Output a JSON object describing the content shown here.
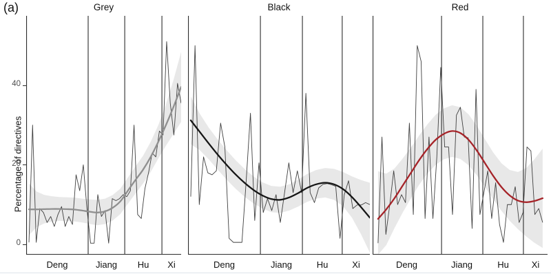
{
  "figure_label": "(a)",
  "chart_data": {
    "type": "line",
    "title": "",
    "ylabel": "Percentage of directives",
    "y_ticks": [
      "40",
      "20",
      "0"
    ],
    "y_tick_values": [
      40,
      20,
      0
    ],
    "y_axis_range_shown": [
      -2.5,
      57.5
    ],
    "grid": false,
    "legend": "none",
    "style": {
      "band_color": "rgba(0,0,0,0.09)",
      "raw_line_color": "#3f3f3f",
      "axis_color": "#2b2b2b",
      "tick_label_color": "#4d4d4d"
    },
    "facets": [
      {
        "title": "Grey",
        "smooth_color": "#8f8f8f",
        "era_labels": [
          "Deng",
          "Jiang",
          "Hu",
          "Xi"
        ],
        "era_boundaries_frac": [
          0.4,
          0.636,
          0.876
        ],
        "data_span_frac": [
          0.018,
          1.0
        ],
        "raw_values": [
          0.5,
          30,
          0.5,
          9,
          8,
          5.5,
          7,
          4.5,
          7.5,
          9.5,
          4.5,
          7,
          5,
          17.5,
          13.5,
          20,
          9,
          0.3,
          0.3,
          12.5,
          7,
          8.5,
          0.3,
          11.5,
          11,
          11.5,
          12.5,
          12,
          13.5,
          30,
          7.5,
          6.5,
          14,
          18,
          23,
          22,
          28.5,
          27.5,
          51,
          35.5,
          27.5,
          40.5,
          35.5
        ],
        "smooth": [
          [
            0,
            8.8,
            6.5
          ],
          [
            0.05,
            8.8,
            4.5
          ],
          [
            0.1,
            8.85,
            3.6
          ],
          [
            0.15,
            8.9,
            3.2
          ],
          [
            0.2,
            8.9,
            3.0
          ],
          [
            0.25,
            8.85,
            3.0
          ],
          [
            0.3,
            8.75,
            3.0
          ],
          [
            0.35,
            8.5,
            3.0
          ],
          [
            0.4,
            8.2,
            3.1
          ],
          [
            0.45,
            8.0,
            3.2
          ],
          [
            0.5,
            8.3,
            3.2
          ],
          [
            0.55,
            9.2,
            3.2
          ],
          [
            0.6,
            10.8,
            3.2
          ],
          [
            0.65,
            13.5,
            3.3
          ],
          [
            0.7,
            16.2,
            3.4
          ],
          [
            0.75,
            18.8,
            3.5
          ],
          [
            0.8,
            22.0,
            3.8
          ],
          [
            0.85,
            25.8,
            4.2
          ],
          [
            0.9,
            30.0,
            5.2
          ],
          [
            0.95,
            34.6,
            6.8
          ],
          [
            1,
            39.6,
            8.8
          ]
        ]
      },
      {
        "title": "Black",
        "smooth_color": "#151515",
        "era_labels": [
          "Deng",
          "Jiang",
          "Hu",
          "Xi"
        ],
        "era_boundaries_frac": [
          0.398,
          0.629,
          0.848
        ],
        "data_span_frac": [
          0.015,
          1.0
        ],
        "raw_values": [
          12,
          50,
          10,
          22,
          18,
          17.5,
          18.5,
          30.5,
          24.5,
          1.5,
          0.5,
          0.5,
          0.5,
          16,
          33,
          6,
          20.5,
          8,
          11.5,
          8.5,
          12.5,
          5.5,
          13,
          20.5,
          13,
          18.5,
          13,
          38,
          13,
          10.5,
          14.2,
          15.1,
          15.3,
          15,
          14.6,
          1.5,
          12.5,
          16,
          9,
          9.9,
          9.9,
          10.5,
          10
        ],
        "smooth": [
          [
            0,
            31.2,
            6.0
          ],
          [
            0.05,
            28.3,
            4.6
          ],
          [
            0.1,
            25.4,
            4.0
          ],
          [
            0.15,
            22.6,
            3.8
          ],
          [
            0.2,
            20.0,
            3.7
          ],
          [
            0.25,
            17.6,
            3.6
          ],
          [
            0.3,
            15.5,
            3.5
          ],
          [
            0.35,
            13.7,
            3.4
          ],
          [
            0.4,
            12.3,
            3.3
          ],
          [
            0.45,
            11.4,
            3.3
          ],
          [
            0.5,
            11.2,
            3.3
          ],
          [
            0.55,
            11.8,
            3.3
          ],
          [
            0.6,
            12.9,
            3.4
          ],
          [
            0.65,
            14.2,
            3.5
          ],
          [
            0.7,
            15.1,
            3.6
          ],
          [
            0.75,
            15.5,
            3.7
          ],
          [
            0.8,
            15.1,
            3.9
          ],
          [
            0.85,
            13.9,
            4.3
          ],
          [
            0.9,
            11.9,
            5.2
          ],
          [
            0.95,
            9.4,
            6.8
          ],
          [
            1,
            6.7,
            8.8
          ]
        ]
      },
      {
        "title": "Red",
        "smooth_color": "#a52328",
        "era_labels": [
          "Deng",
          "Jiang",
          "Hu",
          "Xi"
        ],
        "era_boundaries_frac": [
          0.394,
          0.63,
          0.862
        ],
        "data_span_frac": [
          0.031,
          0.972
        ],
        "raw_values": [
          0.3,
          27,
          2.5,
          10,
          18.5,
          10,
          12.5,
          10.5,
          30.5,
          7.5,
          50,
          46,
          6.5,
          27,
          6.5,
          22,
          44.5,
          24.5,
          24.5,
          7.5,
          32.5,
          34.5,
          27,
          26.8,
          4,
          39,
          7.5,
          13,
          18.5,
          6.5,
          15.5,
          5,
          0.5,
          10,
          10,
          14.5,
          5.5,
          8,
          24.5,
          23.5,
          7.5,
          9,
          5.5
        ],
        "smooth": [
          [
            0,
            6.4,
            12.0
          ],
          [
            0.05,
            8.8,
            9.0
          ],
          [
            0.1,
            11.6,
            7.5
          ],
          [
            0.15,
            14.8,
            6.8
          ],
          [
            0.2,
            18.0,
            6.4
          ],
          [
            0.25,
            21.2,
            6.2
          ],
          [
            0.3,
            24.0,
            6.2
          ],
          [
            0.35,
            26.3,
            6.3
          ],
          [
            0.4,
            27.8,
            6.4
          ],
          [
            0.45,
            28.5,
            6.5
          ],
          [
            0.5,
            28.0,
            6.5
          ],
          [
            0.55,
            26.3,
            6.4
          ],
          [
            0.6,
            23.6,
            6.2
          ],
          [
            0.65,
            20.4,
            6.0
          ],
          [
            0.7,
            17.2,
            5.9
          ],
          [
            0.75,
            14.4,
            6.0
          ],
          [
            0.8,
            12.3,
            6.4
          ],
          [
            0.85,
            11.0,
            7.2
          ],
          [
            0.9,
            10.6,
            8.6
          ],
          [
            0.95,
            10.9,
            10.5
          ],
          [
            1,
            11.6,
            12.5
          ]
        ]
      }
    ]
  }
}
